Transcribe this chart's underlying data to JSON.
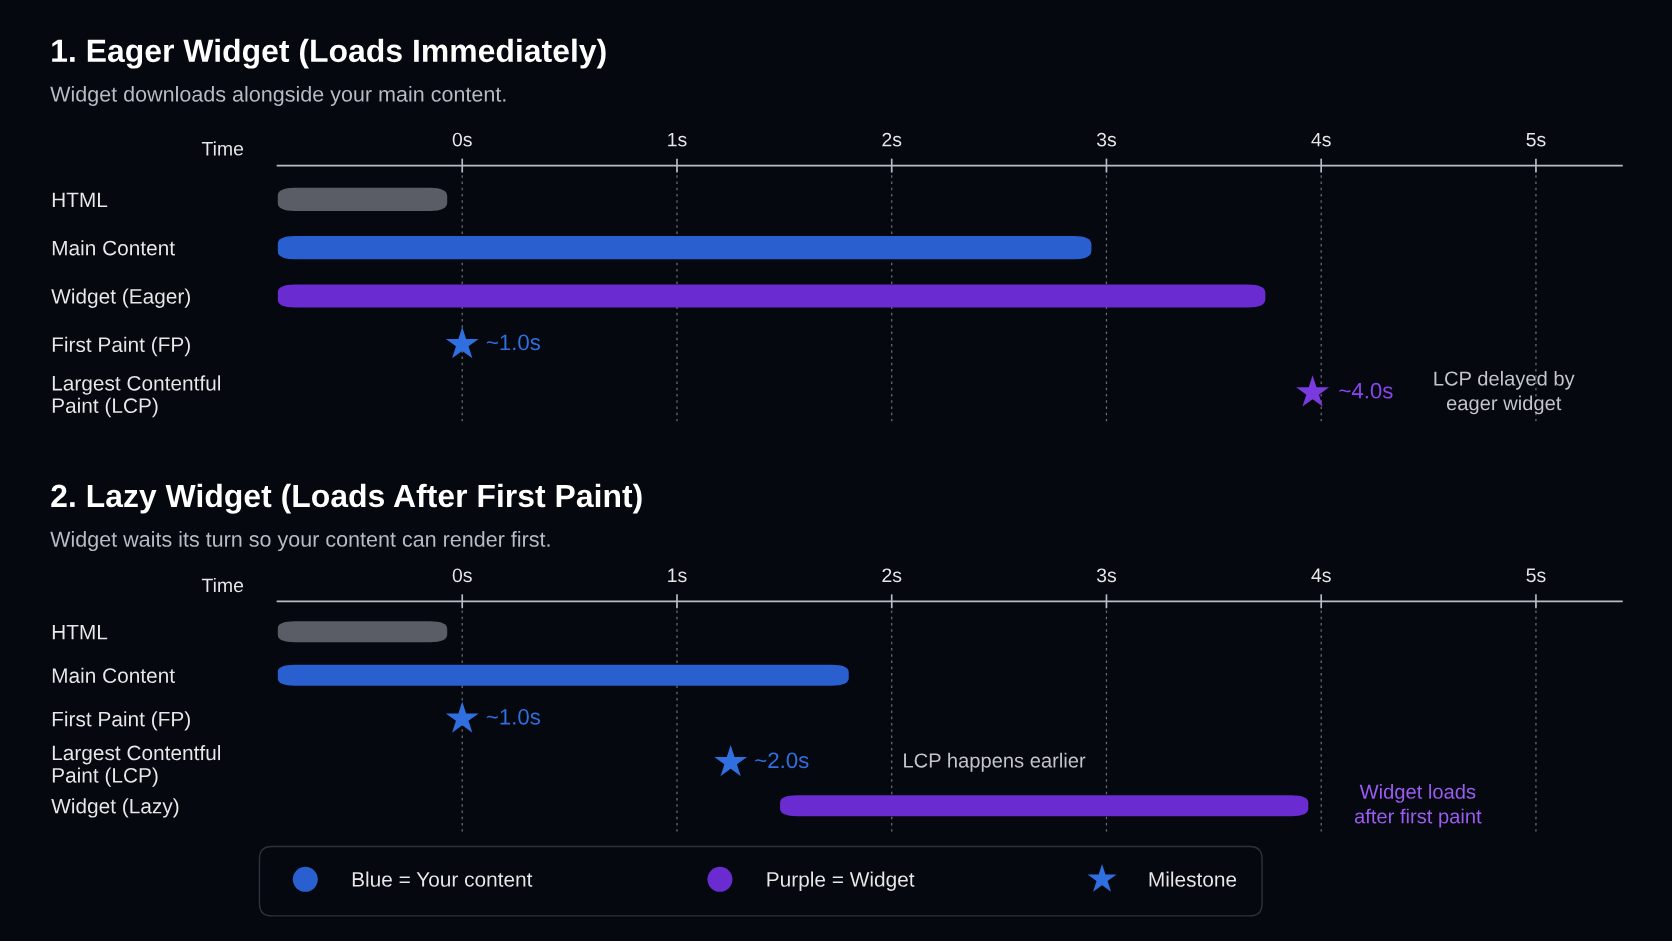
{
  "chart_data": [
    {
      "type": "bar",
      "orientation": "horizontal",
      "title": "1. Eager Widget (Loads Immediately)",
      "subtitle": "Widget downloads alongside your main content.",
      "xlabel": "Time",
      "categories": [
        "HTML",
        "Main Content",
        "Widget (Eager)",
        "First Paint (FP)",
        "Largest Contentful\nPaint (LCP)"
      ],
      "series": [
        {
          "color": "#5a5d66",
          "values": [
            0.79,
            null,
            null,
            null,
            null
          ],
          "base": [
            -0.86,
            null,
            null,
            null,
            null
          ]
        },
        {
          "color": "#2a5fcf",
          "values": [
            null,
            3.79,
            null,
            null,
            null
          ],
          "base": [
            null,
            -0.86,
            null,
            null,
            null
          ]
        },
        {
          "color": "#6a2bd0",
          "values": [
            null,
            null,
            4.6,
            null,
            null
          ],
          "base": [
            null,
            null,
            -0.86,
            null,
            null
          ]
        },
        {
          "type": "scatter",
          "marker": "star",
          "colors": [
            null,
            null,
            null,
            "#2f6fe0",
            "#7a3ae0"
          ],
          "values": [
            null,
            null,
            null,
            0.0,
            3.96
          ]
        }
      ],
      "annotations": [
        "~1.0s",
        "~4.0s",
        "LCP delayed by\neager widget"
      ],
      "xlim": [
        -0.86,
        5.4
      ],
      "xticks": [
        {
          "value": 0,
          "label": "0s"
        },
        {
          "value": 1,
          "label": "1s"
        },
        {
          "value": 2,
          "label": "2s"
        },
        {
          "value": 3,
          "label": "3s"
        },
        {
          "value": 4,
          "label": "4s"
        },
        {
          "value": 5,
          "label": "5s"
        }
      ],
      "grid": "x",
      "legend": false
    },
    {
      "type": "bar",
      "orientation": "horizontal",
      "title": "2. Lazy Widget (Loads After First Paint)",
      "subtitle": "Widget waits its turn so your content can render first.",
      "xlabel": "Time",
      "categories": [
        "HTML",
        "Main Content",
        "First Paint (FP)",
        "Largest Contentful\nPaint (LCP)",
        "Widget (Lazy)"
      ],
      "series": [
        {
          "color": "#5a5d66",
          "values": [
            0.79,
            null,
            null,
            null,
            null
          ],
          "base": [
            -0.86,
            null,
            null,
            null,
            null
          ]
        },
        {
          "name": "Blue = Your content",
          "color": "#2a5fcf",
          "values": [
            null,
            2.66,
            null,
            null,
            null
          ],
          "base": [
            null,
            -0.86,
            null,
            null,
            null
          ]
        },
        {
          "name": "Purple = Widget",
          "color": "#6a2bd0",
          "values": [
            null,
            null,
            null,
            null,
            2.46
          ],
          "base": [
            null,
            null,
            null,
            null,
            1.48
          ]
        },
        {
          "name": "Milestone",
          "type": "scatter",
          "marker": "star",
          "color": "#2f6fe0",
          "values": [
            null,
            null,
            0.0,
            1.25,
            null
          ]
        }
      ],
      "annotations": [
        "~1.0s",
        "~2.0s",
        "LCP happens earlier",
        "Widget loads\nafter first paint"
      ],
      "xlim": [
        -0.86,
        5.4
      ],
      "xticks": [
        {
          "value": 0,
          "label": "0s"
        },
        {
          "value": 1,
          "label": "1s"
        },
        {
          "value": 2,
          "label": "2s"
        },
        {
          "value": 3,
          "label": "3s"
        },
        {
          "value": 4,
          "label": "4s"
        },
        {
          "value": 5,
          "label": "5s"
        }
      ],
      "grid": "x",
      "legend": "bottom"
    }
  ]
}
